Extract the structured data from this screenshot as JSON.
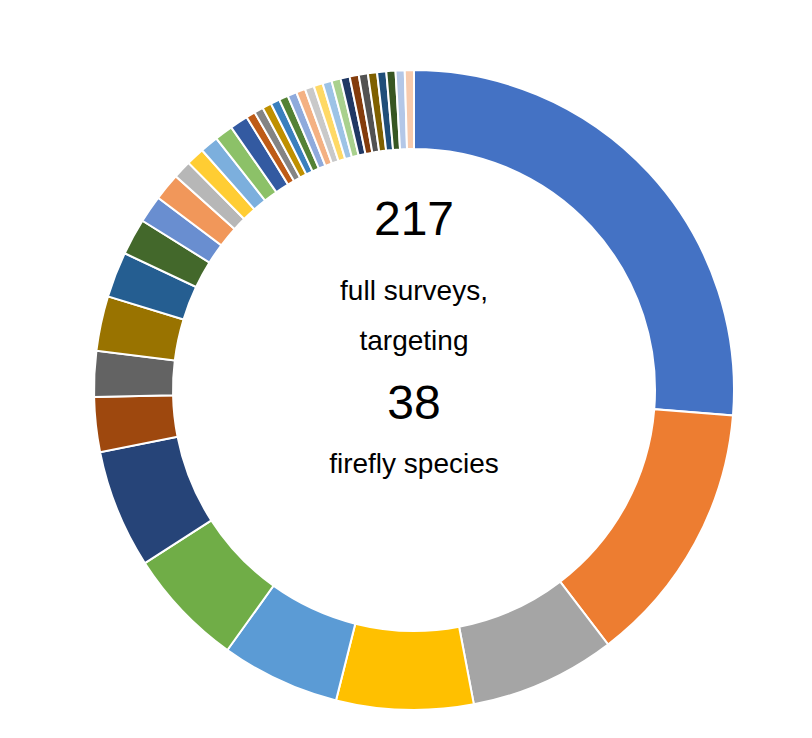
{
  "chart_data": {
    "type": "donut",
    "center_labels": [
      "217",
      "full surveys,",
      "targeting",
      "38",
      "firefly species"
    ],
    "values": [
      57,
      29,
      16,
      15,
      13,
      13,
      13,
      6,
      5,
      6,
      5,
      4,
      3,
      3,
      2,
      2,
      2,
      2,
      2,
      1,
      1,
      1,
      1,
      1,
      1,
      1,
      1,
      1,
      1,
      1,
      1,
      1,
      1,
      1,
      1,
      1,
      1,
      1
    ],
    "colors": [
      "#4472C4",
      "#ED7D31",
      "#A5A5A5",
      "#FFC000",
      "#5B9BD5",
      "#70AD47",
      "#264478",
      "#9E480E",
      "#636363",
      "#997300",
      "#255E91",
      "#43682B",
      "#698ED0",
      "#F1975A",
      "#B7B7B7",
      "#FFCD33",
      "#7CAFDD",
      "#8CC168",
      "#335AA1",
      "#BE5B17",
      "#848484",
      "#BF9000",
      "#3A7FBE",
      "#548235",
      "#8FAADC",
      "#F4B183",
      "#C9C9C9",
      "#FFD966",
      "#9DC3E6",
      "#A9D18E",
      "#203864",
      "#843C0C",
      "#525252",
      "#7F6000",
      "#1F4E79",
      "#375623",
      "#B4C7E7",
      "#F8CBAD"
    ],
    "legend": false,
    "data_labels": false
  }
}
